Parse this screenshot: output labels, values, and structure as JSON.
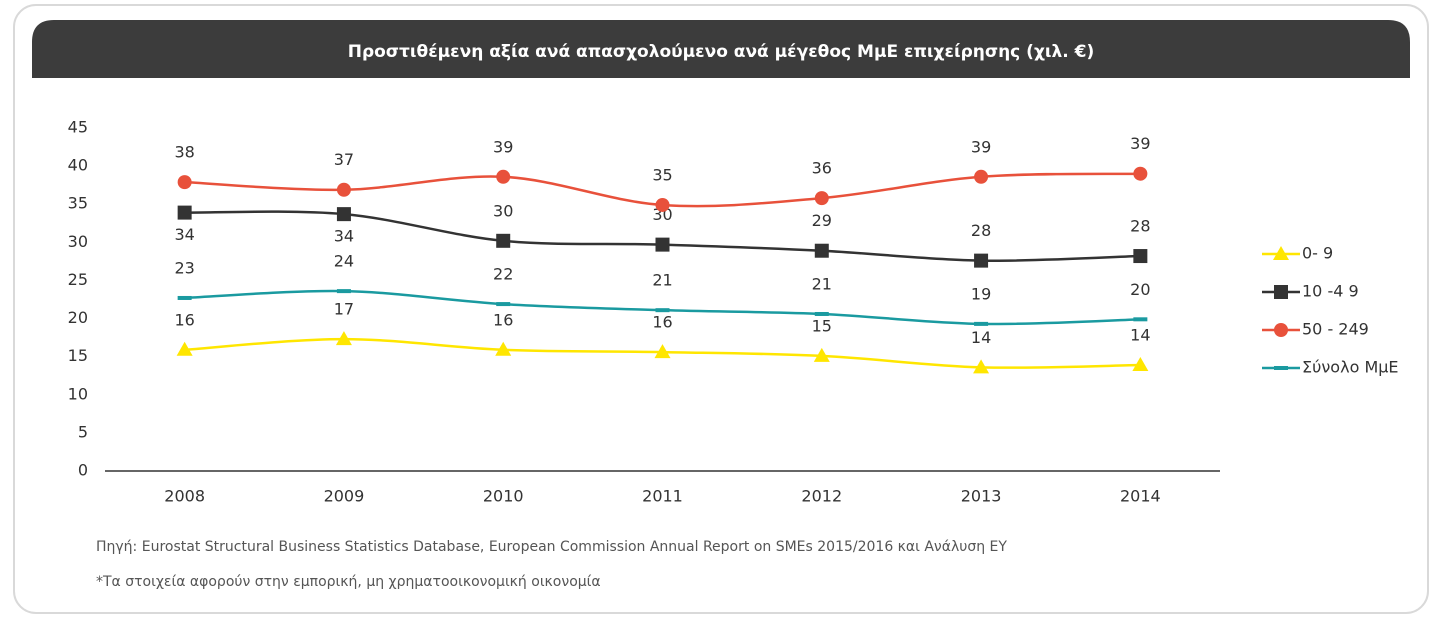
{
  "chart_data": {
    "type": "line",
    "title": "Προστιθέμενη αξία ανά απασχολούμενο ανά μέγεθος ΜμΕ επιχείρησης (χιλ. €)",
    "categories": [
      "2008",
      "2009",
      "2010",
      "2011",
      "2012",
      "2013",
      "2014"
    ],
    "series": [
      {
        "name": "0-  9",
        "color": "#ffe600",
        "marker": "triangle",
        "values": [
          15.9,
          17.3,
          15.9,
          15.6,
          15.1,
          13.6,
          13.9
        ],
        "value_labels": [
          "16",
          "17",
          "16",
          "16",
          "15",
          "14",
          "14"
        ]
      },
      {
        "name": "10 -4 9",
        "color": "#333333",
        "marker": "square",
        "values": [
          33.9,
          33.7,
          30.2,
          29.7,
          28.9,
          27.6,
          28.2
        ],
        "value_labels": [
          "34",
          "34",
          "30",
          "30",
          "29",
          "28",
          "28"
        ]
      },
      {
        "name": "50 - 249",
        "color": "#e8513b",
        "marker": "circle",
        "values": [
          37.9,
          36.9,
          38.6,
          34.9,
          35.8,
          38.6,
          39.0
        ],
        "value_labels": [
          "38",
          "37",
          "39",
          "35",
          "36",
          "39",
          "39"
        ]
      },
      {
        "name": "Σύνολο ΜμΕ",
        "color": "#1a9aa0",
        "marker": "dash",
        "values": [
          22.7,
          23.6,
          21.9,
          21.1,
          20.6,
          19.3,
          19.9
        ],
        "value_labels": [
          "23",
          "24",
          "22",
          "21",
          "21",
          "19",
          "20"
        ]
      }
    ],
    "ylim": [
      0,
      45
    ],
    "yticks": [
      0,
      5,
      10,
      15,
      20,
      25,
      30,
      35,
      40,
      45
    ],
    "grid": false,
    "legend": "right",
    "source": "Πηγή: Eurostat Structural Business Statistics Database, European Commission Annual Report on SMEs 2015/2016 και Ανάλυση ΕΥ",
    "note": "*Τα στοιχεία αφορούν στην εμπορική, μη χρηματοοικονομική οικονομία"
  }
}
